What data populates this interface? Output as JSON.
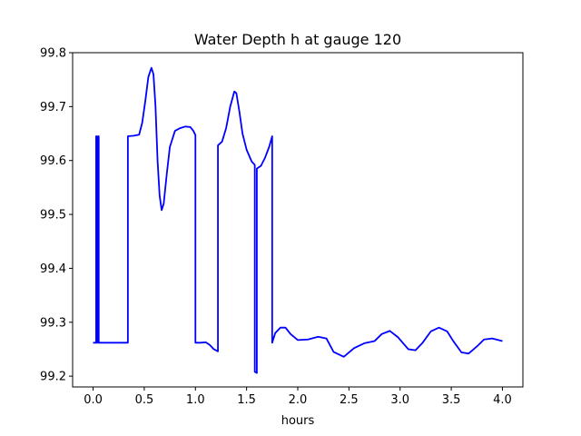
{
  "chart_data": {
    "type": "line",
    "title": "Water Depth h at gauge 120",
    "xlabel": "hours",
    "ylabel": "",
    "xlim": [
      -0.2,
      4.2
    ],
    "ylim": [
      99.18,
      99.8
    ],
    "x_ticks": [
      0.0,
      0.5,
      1.0,
      1.5,
      2.0,
      2.5,
      3.0,
      3.5,
      4.0
    ],
    "x_tick_labels": [
      "0.0",
      "0.5",
      "1.0",
      "1.5",
      "2.0",
      "2.5",
      "3.0",
      "3.5",
      "4.0"
    ],
    "y_ticks": [
      99.2,
      99.3,
      99.4,
      99.5,
      99.6,
      99.7,
      99.8
    ],
    "y_tick_labels": [
      "99.2",
      "99.3",
      "99.4",
      "99.5",
      "99.6",
      "99.7",
      "99.8"
    ],
    "grid": false,
    "series": [
      {
        "color": "#0000ff",
        "points": [
          [
            0.0,
            99.262
          ],
          [
            0.03,
            99.262
          ],
          [
            0.03,
            99.645
          ],
          [
            0.035,
            99.645
          ],
          [
            0.035,
            99.262
          ],
          [
            0.05,
            99.262
          ],
          [
            0.05,
            99.645
          ],
          [
            0.055,
            99.645
          ],
          [
            0.055,
            99.262
          ],
          [
            0.2,
            99.262
          ],
          [
            0.34,
            99.262
          ],
          [
            0.34,
            99.645
          ],
          [
            0.4,
            99.646
          ],
          [
            0.45,
            99.648
          ],
          [
            0.48,
            99.67
          ],
          [
            0.51,
            99.71
          ],
          [
            0.54,
            99.755
          ],
          [
            0.57,
            99.772
          ],
          [
            0.59,
            99.76
          ],
          [
            0.61,
            99.7
          ],
          [
            0.63,
            99.6
          ],
          [
            0.65,
            99.535
          ],
          [
            0.67,
            99.508
          ],
          [
            0.69,
            99.52
          ],
          [
            0.72,
            99.575
          ],
          [
            0.75,
            99.625
          ],
          [
            0.8,
            99.655
          ],
          [
            0.85,
            99.66
          ],
          [
            0.9,
            99.663
          ],
          [
            0.95,
            99.662
          ],
          [
            0.98,
            99.655
          ],
          [
            1.0,
            99.647
          ],
          [
            1.0,
            99.262
          ],
          [
            1.05,
            99.262
          ],
          [
            1.1,
            99.263
          ],
          [
            1.14,
            99.258
          ],
          [
            1.18,
            99.25
          ],
          [
            1.22,
            99.246
          ],
          [
            1.22,
            99.628
          ],
          [
            1.26,
            99.635
          ],
          [
            1.3,
            99.66
          ],
          [
            1.34,
            99.7
          ],
          [
            1.38,
            99.728
          ],
          [
            1.4,
            99.725
          ],
          [
            1.43,
            99.69
          ],
          [
            1.46,
            99.65
          ],
          [
            1.5,
            99.62
          ],
          [
            1.55,
            99.598
          ],
          [
            1.58,
            99.592
          ],
          [
            1.58,
            99.208
          ],
          [
            1.6,
            99.206
          ],
          [
            1.6,
            99.585
          ],
          [
            1.64,
            99.59
          ],
          [
            1.68,
            99.605
          ],
          [
            1.72,
            99.625
          ],
          [
            1.75,
            99.645
          ],
          [
            1.75,
            99.262
          ],
          [
            1.78,
            99.28
          ],
          [
            1.83,
            99.29
          ],
          [
            1.88,
            99.29
          ],
          [
            1.93,
            99.278
          ],
          [
            2.0,
            99.267
          ],
          [
            2.1,
            99.268
          ],
          [
            2.2,
            99.273
          ],
          [
            2.28,
            99.27
          ],
          [
            2.35,
            99.245
          ],
          [
            2.45,
            99.236
          ],
          [
            2.55,
            99.252
          ],
          [
            2.65,
            99.261
          ],
          [
            2.75,
            99.265
          ],
          [
            2.82,
            99.278
          ],
          [
            2.9,
            99.284
          ],
          [
            2.98,
            99.272
          ],
          [
            3.08,
            99.25
          ],
          [
            3.15,
            99.248
          ],
          [
            3.22,
            99.262
          ],
          [
            3.3,
            99.283
          ],
          [
            3.38,
            99.29
          ],
          [
            3.46,
            99.283
          ],
          [
            3.52,
            99.265
          ],
          [
            3.6,
            99.244
          ],
          [
            3.67,
            99.242
          ],
          [
            3.75,
            99.255
          ],
          [
            3.82,
            99.268
          ],
          [
            3.9,
            99.27
          ],
          [
            4.0,
            99.265
          ]
        ]
      }
    ]
  }
}
